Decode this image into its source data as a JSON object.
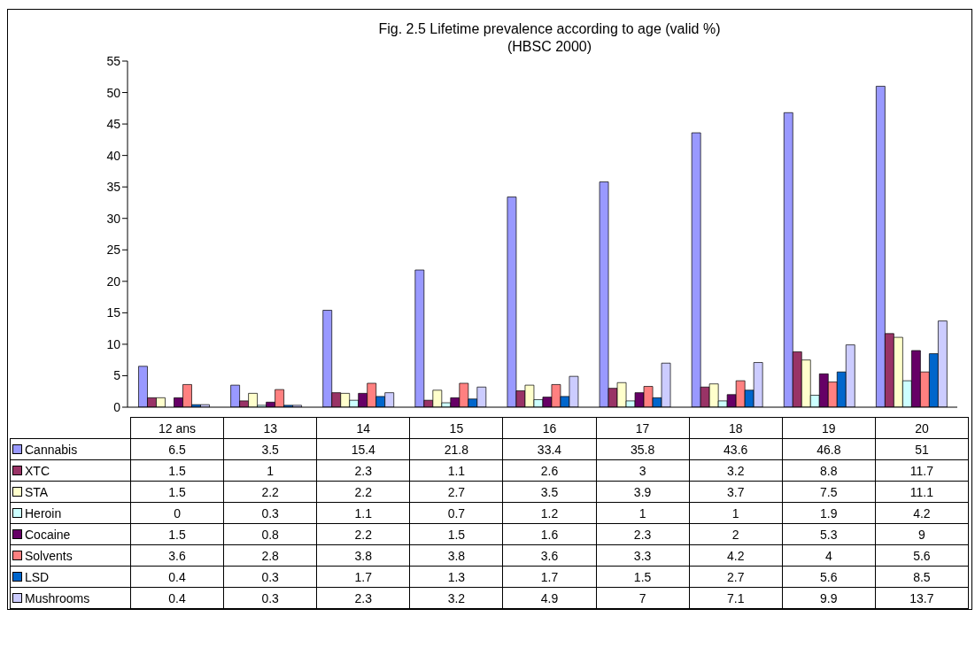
{
  "chart_data": {
    "type": "bar",
    "title": "Fig. 2.5 Lifetime prevalence according to age (valid %)",
    "subtitle": "(HBSC 2000)",
    "categories": [
      "12 ans",
      "13",
      "14",
      "15",
      "16",
      "17",
      "18",
      "19",
      "20"
    ],
    "series": [
      {
        "name": "Cannabis",
        "color": "#9999ff",
        "values": [
          6.5,
          3.5,
          15.4,
          21.8,
          33.4,
          35.8,
          43.6,
          46.8,
          51
        ]
      },
      {
        "name": "XTC",
        "color": "#993366",
        "values": [
          1.5,
          1,
          2.3,
          1.1,
          2.6,
          3,
          3.2,
          8.8,
          11.7
        ]
      },
      {
        "name": "STA",
        "color": "#ffffcc",
        "values": [
          1.5,
          2.2,
          2.2,
          2.7,
          3.5,
          3.9,
          3.7,
          7.5,
          11.1
        ]
      },
      {
        "name": "Heroin",
        "color": "#ccffff",
        "values": [
          0,
          0.3,
          1.1,
          0.7,
          1.2,
          1,
          1,
          1.9,
          4.2
        ]
      },
      {
        "name": "Cocaine",
        "color": "#660066",
        "values": [
          1.5,
          0.8,
          2.2,
          1.5,
          1.6,
          2.3,
          2,
          5.3,
          9
        ]
      },
      {
        "name": "Solvents",
        "color": "#ff8080",
        "values": [
          3.6,
          2.8,
          3.8,
          3.8,
          3.6,
          3.3,
          4.2,
          4,
          5.6
        ]
      },
      {
        "name": "LSD",
        "color": "#0066cc",
        "values": [
          0.4,
          0.3,
          1.7,
          1.3,
          1.7,
          1.5,
          2.7,
          5.6,
          8.5
        ]
      },
      {
        "name": "Mushrooms",
        "color": "#ccccff",
        "values": [
          0.4,
          0.3,
          2.3,
          3.2,
          4.9,
          7,
          7.1,
          9.9,
          13.7
        ]
      }
    ],
    "ylim": [
      0,
      55
    ],
    "yticks": [
      0,
      5,
      10,
      15,
      20,
      25,
      30,
      35,
      40,
      45,
      50,
      55
    ],
    "legend": "bottom",
    "data_labels": true
  }
}
